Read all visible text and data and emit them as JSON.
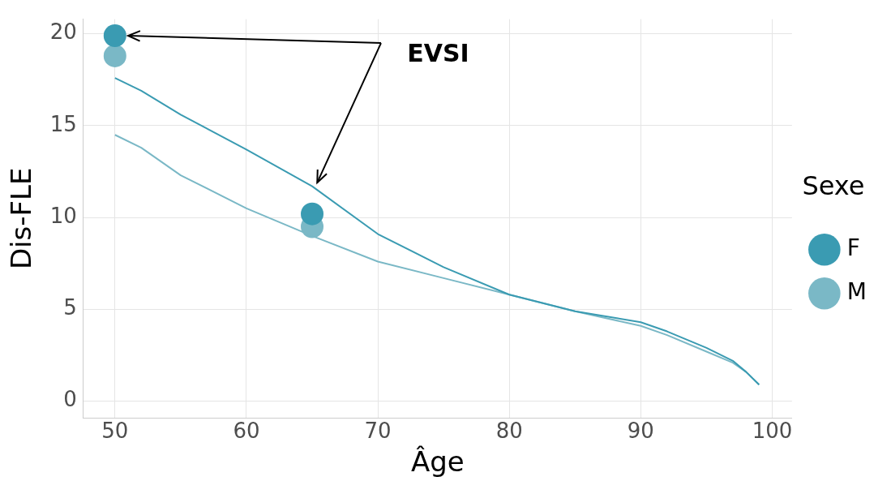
{
  "chart_data": {
    "type": "line",
    "xlabel": "Âge",
    "ylabel": "Dis-FLE",
    "legend_title": "Sexe",
    "legend": "right",
    "grid": true,
    "xlim": [
      47.6,
      101.5
    ],
    "xticks": [
      50,
      60,
      70,
      80,
      90,
      100
    ],
    "ylim": [
      -0.9,
      20.8
    ],
    "yticks": [
      0,
      5,
      10,
      15,
      20
    ],
    "annotations": [
      {
        "text": "EVSI",
        "x": 51,
        "y": 19.9
      }
    ],
    "series": [
      {
        "name": "F",
        "color": "#3a9bb2",
        "x": [
          50,
          52,
          55,
          60,
          65,
          70,
          75,
          80,
          85,
          90,
          92,
          95,
          97,
          98,
          99
        ],
        "values": [
          17.6,
          16.9,
          15.6,
          13.7,
          11.7,
          9.1,
          7.3,
          5.8,
          4.9,
          4.3,
          3.8,
          2.9,
          2.2,
          1.6,
          0.9
        ]
      },
      {
        "name": "M",
        "color": "#7ab8c6",
        "x": [
          50,
          52,
          55,
          60,
          65,
          70,
          75,
          80,
          85,
          90,
          92,
          95,
          97,
          98,
          99
        ],
        "values": [
          14.5,
          13.8,
          12.3,
          10.5,
          9.0,
          7.6,
          6.7,
          5.8,
          4.9,
          4.1,
          3.6,
          2.7,
          2.1,
          1.6,
          0.9
        ]
      },
      {
        "type": "scatter",
        "color": "#3a9bb2",
        "x": [
          50,
          65
        ],
        "values": [
          19.9,
          10.2
        ]
      },
      {
        "type": "scatter",
        "color": "#7ab8c6",
        "x": [
          50,
          65
        ],
        "values": [
          18.8,
          9.5
        ]
      }
    ]
  }
}
